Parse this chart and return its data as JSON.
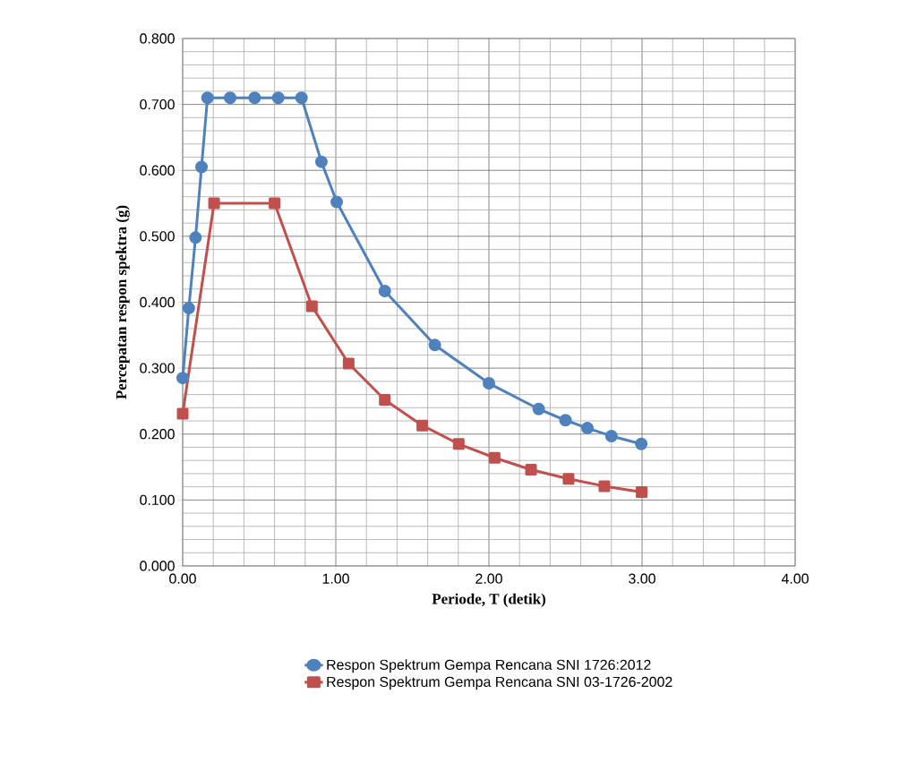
{
  "chart_data": {
    "type": "line",
    "xlabel": "Periode, T (detik)",
    "ylabel": "Percepatan respon spektra (g)",
    "xlim": [
      0,
      4
    ],
    "ylim": [
      0,
      0.8
    ],
    "xticks": [
      {
        "value": 0,
        "label": "0.00"
      },
      {
        "value": 1,
        "label": "1.00"
      },
      {
        "value": 2,
        "label": "2.00"
      },
      {
        "value": 3,
        "label": "3.00"
      },
      {
        "value": 4,
        "label": "4.00"
      }
    ],
    "yticks": [
      {
        "value": 0,
        "label": "0.000"
      },
      {
        "value": 0.1,
        "label": "0.100"
      },
      {
        "value": 0.2,
        "label": "0.200"
      },
      {
        "value": 0.3,
        "label": "0.300"
      },
      {
        "value": 0.4,
        "label": "0.400"
      },
      {
        "value": 0.5,
        "label": "0.500"
      },
      {
        "value": 0.6,
        "label": "0.600"
      },
      {
        "value": 0.7,
        "label": "0.700"
      },
      {
        "value": 0.8,
        "label": "0.800"
      }
    ],
    "grid": true,
    "legend": "bottom",
    "series": [
      {
        "name": "Respon Spektrum Gempa Rencana SNI 1726:2012",
        "color": "#4f81bd",
        "marker": "circle",
        "x": [
          0.0,
          0.04,
          0.084,
          0.123,
          0.162,
          0.31,
          0.47,
          0.624,
          0.776,
          0.906,
          1.006,
          1.32,
          1.647,
          2.0,
          2.325,
          2.5,
          2.643,
          2.8,
          2.995
        ],
        "values": [
          0.285,
          0.391,
          0.498,
          0.605,
          0.71,
          0.71,
          0.71,
          0.71,
          0.71,
          0.613,
          0.552,
          0.417,
          0.335,
          0.277,
          0.238,
          0.221,
          0.209,
          0.197,
          0.185
        ]
      },
      {
        "name": "Respon Spektrum Gempa Rencana SNI 03-1726-2002",
        "color": "#c0504d",
        "marker": "square",
        "x": [
          0.0,
          0.205,
          0.6,
          0.844,
          1.084,
          1.32,
          1.565,
          1.803,
          2.037,
          2.275,
          2.52,
          2.754,
          2.997
        ],
        "values": [
          0.231,
          0.55,
          0.55,
          0.394,
          0.307,
          0.252,
          0.213,
          0.185,
          0.164,
          0.146,
          0.132,
          0.121,
          0.112
        ]
      }
    ]
  }
}
